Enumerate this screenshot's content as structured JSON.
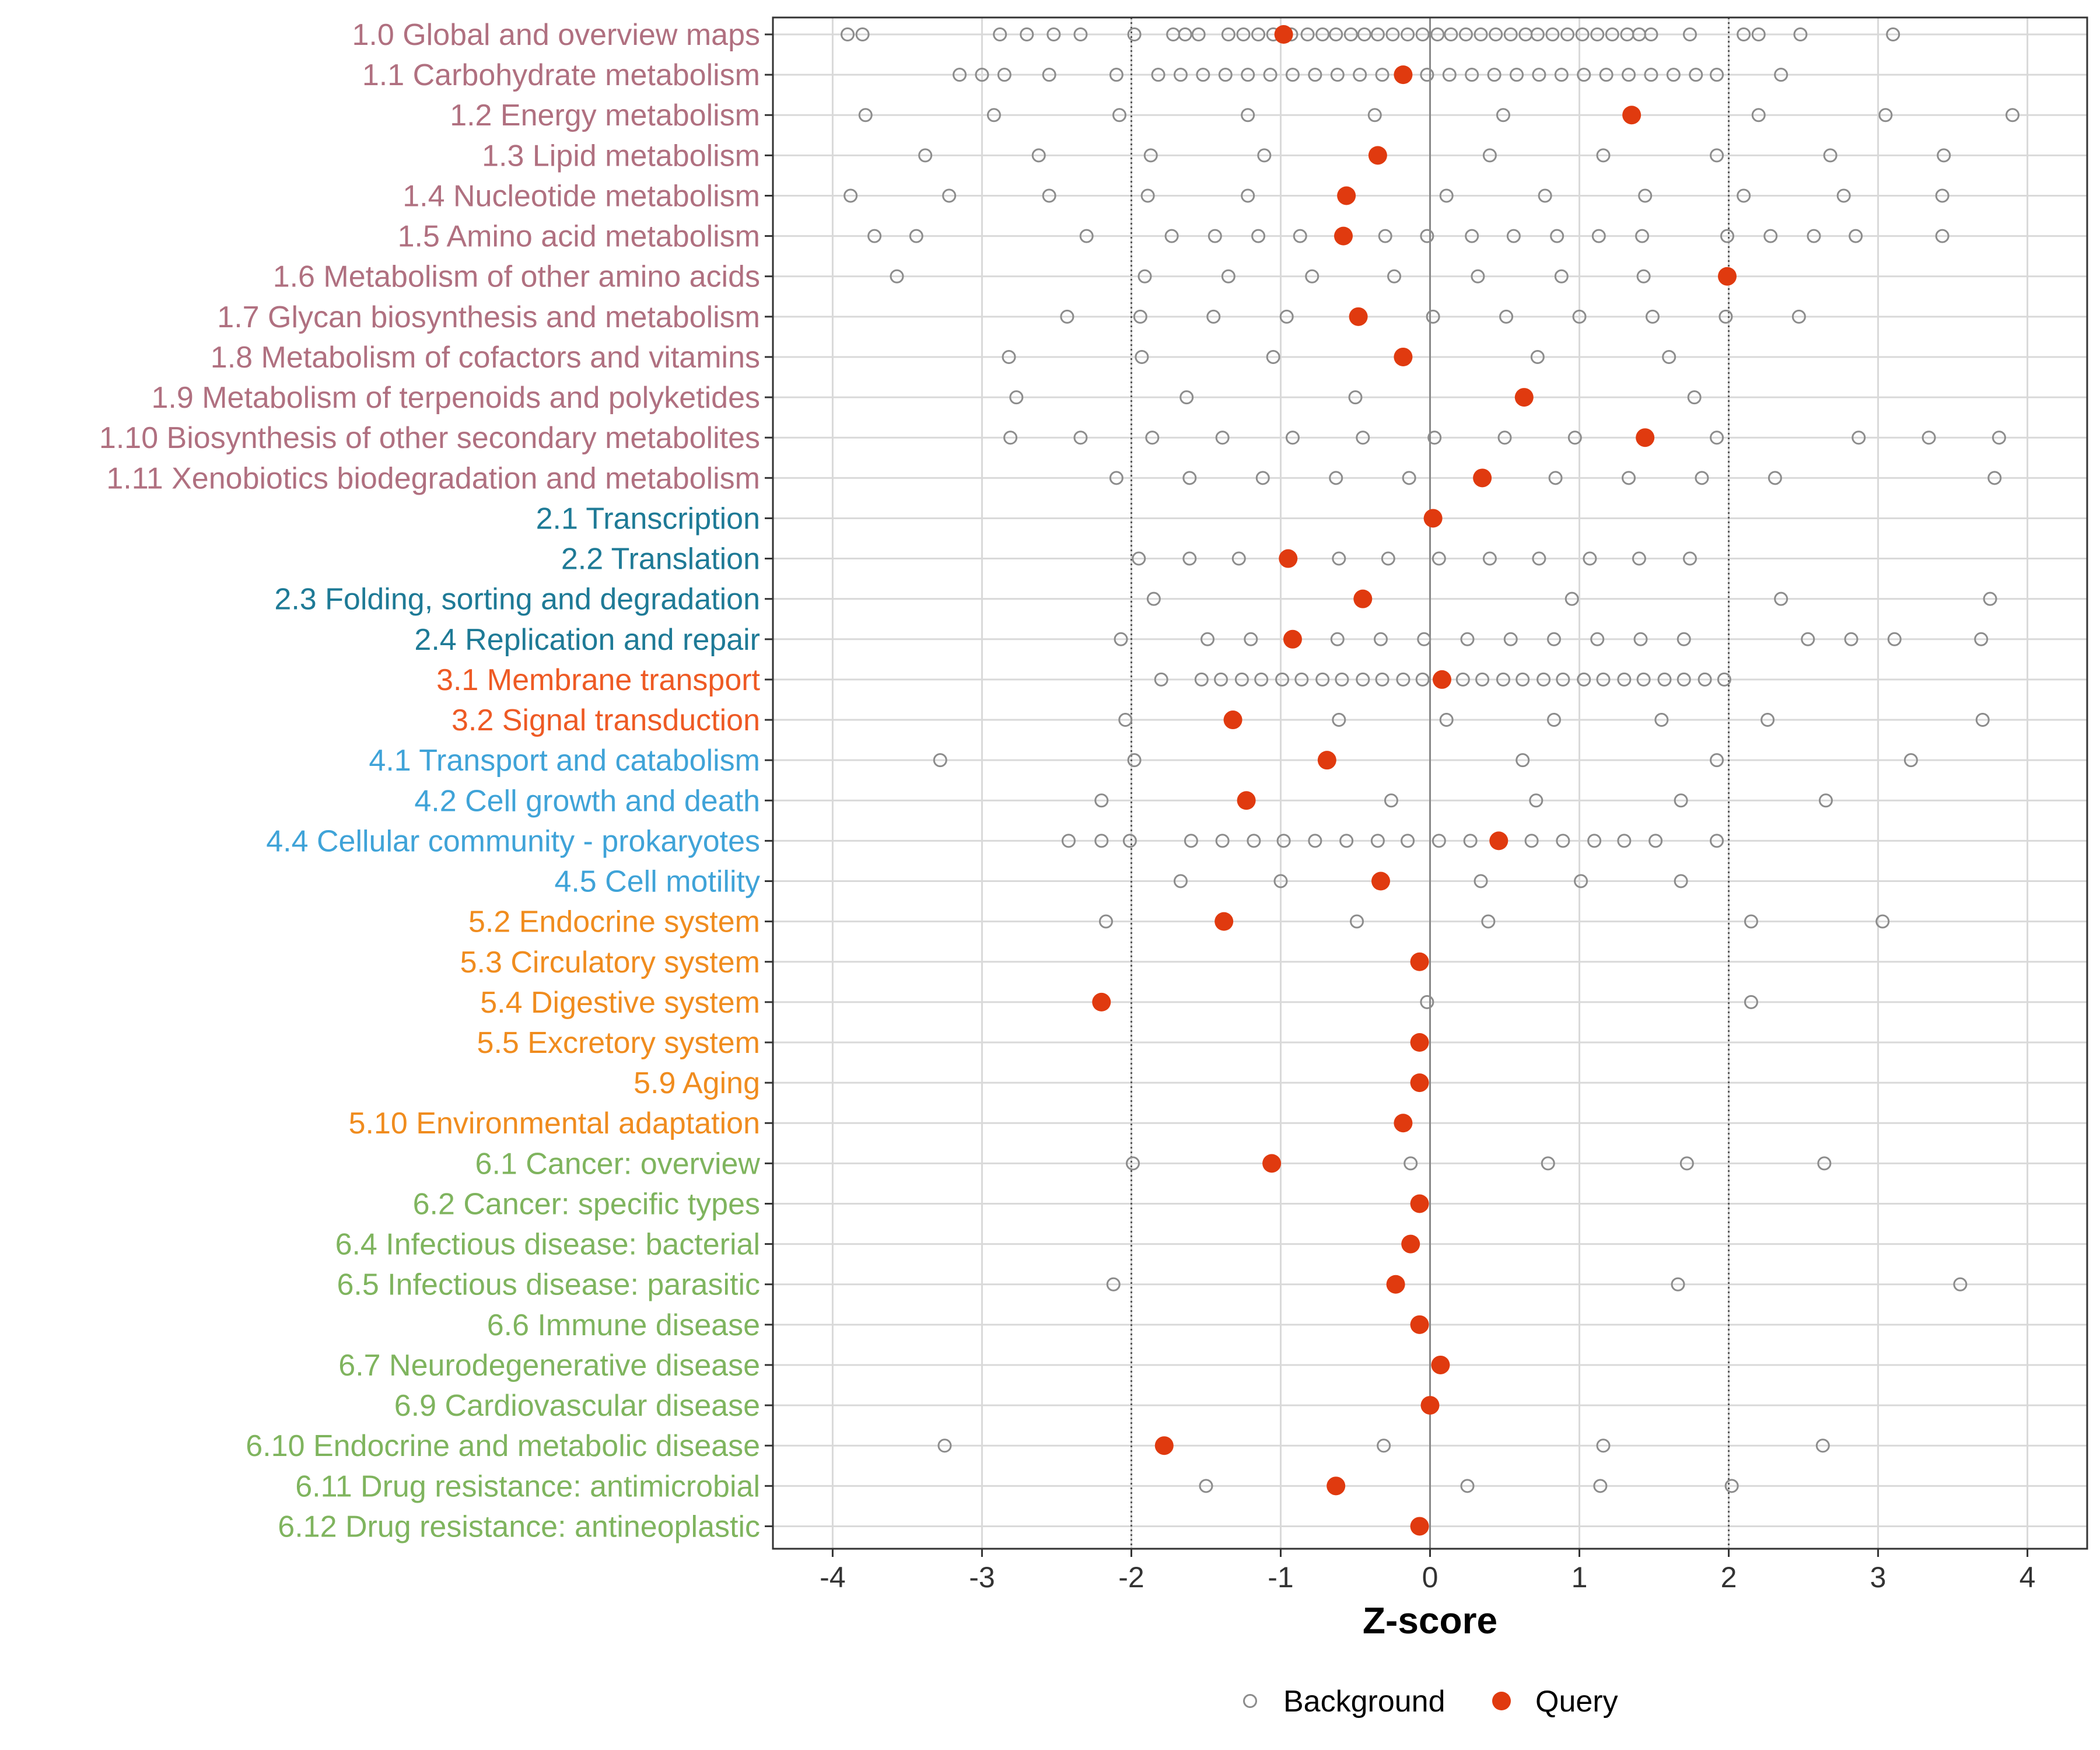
{
  "chart_data": {
    "type": "scatter",
    "xlabel": "Z-score",
    "xlim": [
      -4.4,
      4.4
    ],
    "xticks": [
      -4,
      -3,
      -2,
      -1,
      0,
      1,
      2,
      3,
      4
    ],
    "xtick_labels": [
      "-4",
      "-3",
      "-2",
      "-1",
      "0",
      "1",
      "2",
      "3",
      "4"
    ],
    "threshold_lines": [
      -2,
      2
    ],
    "zero_line": 0,
    "colors": {
      "background_point": "#8c8c8c",
      "query_point": "#e03a0f",
      "grid": "#d9d9d9",
      "threshold": "#555555",
      "zero": "#888888",
      "group_1": "#b07080",
      "group_2": "#1e7a96",
      "group_3": "#ee5a24",
      "group_4": "#3fa3d8",
      "group_5": "#f08c1e",
      "group_6": "#7fb45e"
    },
    "legend": {
      "position": "bottom",
      "entries": [
        {
          "label": "Background",
          "style": "open-circle"
        },
        {
          "label": "Query",
          "style": "filled-circle"
        }
      ]
    },
    "categories": [
      {
        "label": "1.0 Global and overview maps",
        "group": 1,
        "query": -0.98,
        "background": [
          -3.9,
          -3.8,
          -2.88,
          -2.7,
          -2.52,
          -2.34,
          -1.98,
          -1.72,
          -1.64,
          -1.55,
          -1.35,
          -1.25,
          -1.15,
          -1.05,
          -0.93,
          -0.82,
          -0.72,
          -0.63,
          -0.53,
          -0.44,
          -0.35,
          -0.25,
          -0.15,
          -0.05,
          0.05,
          0.14,
          0.24,
          0.34,
          0.44,
          0.54,
          0.64,
          0.72,
          0.82,
          0.92,
          1.02,
          1.12,
          1.22,
          1.32,
          1.4,
          1.48,
          1.74,
          2.1,
          2.2,
          2.48,
          3.1
        ]
      },
      {
        "label": "1.1 Carbohydrate metabolism",
        "group": 1,
        "query": -0.18,
        "background": [
          -3.15,
          -3.0,
          -2.85,
          -2.55,
          -2.1,
          -1.82,
          -1.67,
          -1.52,
          -1.37,
          -1.22,
          -1.07,
          -0.92,
          -0.77,
          -0.62,
          -0.47,
          -0.32,
          -0.02,
          0.13,
          0.28,
          0.43,
          0.58,
          0.73,
          0.88,
          1.03,
          1.18,
          1.33,
          1.48,
          1.63,
          1.78,
          1.92,
          2.35
        ]
      },
      {
        "label": "1.2 Energy metabolism",
        "group": 1,
        "query": 1.35,
        "background": [
          -3.78,
          -2.92,
          -2.08,
          -1.22,
          -0.37,
          0.49,
          2.2,
          3.05,
          3.9
        ]
      },
      {
        "label": "1.3 Lipid metabolism",
        "group": 1,
        "query": -0.35,
        "background": [
          -3.38,
          -2.62,
          -1.87,
          -1.11,
          0.4,
          1.16,
          1.92,
          2.68,
          3.44
        ]
      },
      {
        "label": "1.4 Nucleotide metabolism",
        "group": 1,
        "query": -0.56,
        "background": [
          -3.88,
          -3.22,
          -2.55,
          -1.89,
          -1.22,
          0.11,
          0.77,
          1.44,
          2.1,
          2.77,
          3.43
        ]
      },
      {
        "label": "1.5 Amino acid metabolism",
        "group": 1,
        "query": -0.58,
        "background": [
          -3.72,
          -3.44,
          -2.3,
          -1.73,
          -1.44,
          -1.15,
          -0.87,
          -0.3,
          -0.02,
          0.28,
          0.56,
          0.85,
          1.13,
          1.42,
          1.99,
          2.28,
          2.57,
          2.85,
          3.43
        ]
      },
      {
        "label": "1.6 Metabolism of other amino acids",
        "group": 1,
        "query": 1.99,
        "background": [
          -3.57,
          -1.91,
          -1.35,
          -0.79,
          -0.24,
          0.32,
          0.88,
          1.43
        ]
      },
      {
        "label": "1.7 Glycan biosynthesis and metabolism",
        "group": 1,
        "query": -0.48,
        "background": [
          -2.43,
          -1.94,
          -1.45,
          -0.96,
          0.02,
          0.51,
          1.0,
          1.49,
          1.98,
          2.47
        ]
      },
      {
        "label": "1.8 Metabolism of cofactors and vitamins",
        "group": 1,
        "query": -0.18,
        "background": [
          -2.82,
          -1.93,
          -1.05,
          0.72,
          1.6
        ]
      },
      {
        "label": "1.9 Metabolism of terpenoids and polyketides",
        "group": 1,
        "query": 0.63,
        "background": [
          -2.77,
          -1.63,
          -0.5,
          1.77
        ]
      },
      {
        "label": "1.10 Biosynthesis of other secondary metabolites",
        "group": 1,
        "query": 1.44,
        "background": [
          -2.81,
          -2.34,
          -1.86,
          -1.39,
          -0.92,
          -0.45,
          0.03,
          0.5,
          0.97,
          1.92,
          2.87,
          3.34,
          3.81
        ]
      },
      {
        "label": "1.11 Xenobiotics biodegradation and metabolism",
        "group": 1,
        "query": 0.35,
        "background": [
          -2.1,
          -1.61,
          -1.12,
          -0.63,
          -0.14,
          0.84,
          1.33,
          1.82,
          2.31,
          3.78
        ]
      },
      {
        "label": "2.1 Transcription",
        "group": 2,
        "query": 0.02,
        "background": []
      },
      {
        "label": "2.2 Translation",
        "group": 2,
        "query": -0.95,
        "background": [
          -1.95,
          -1.61,
          -1.28,
          -0.61,
          -0.28,
          0.06,
          0.4,
          0.73,
          1.07,
          1.4,
          1.74
        ]
      },
      {
        "label": "2.3 Folding, sorting and degradation",
        "group": 2,
        "query": -0.45,
        "background": [
          -1.85,
          0.95,
          2.35,
          3.75
        ]
      },
      {
        "label": "2.4 Replication and repair",
        "group": 2,
        "query": -0.92,
        "background": [
          -2.07,
          -1.49,
          -1.2,
          -0.62,
          -0.33,
          -0.04,
          0.25,
          0.54,
          0.83,
          1.12,
          1.41,
          1.7,
          2.53,
          2.82,
          3.11,
          3.69
        ]
      },
      {
        "label": "3.1 Membrane transport",
        "group": 3,
        "query": 0.08,
        "background": [
          -1.8,
          -1.53,
          -1.4,
          -1.26,
          -1.13,
          -0.99,
          -0.86,
          -0.72,
          -0.59,
          -0.45,
          -0.32,
          -0.18,
          -0.05,
          0.22,
          0.35,
          0.49,
          0.62,
          0.76,
          0.89,
          1.03,
          1.16,
          1.3,
          1.43,
          1.57,
          1.7,
          1.84,
          1.97
        ]
      },
      {
        "label": "3.2 Signal transduction",
        "group": 3,
        "query": -1.32,
        "background": [
          -2.04,
          -0.61,
          0.11,
          0.83,
          1.55,
          2.26,
          3.7
        ]
      },
      {
        "label": "4.1 Transport and catabolism",
        "group": 4,
        "query": -0.69,
        "background": [
          -3.28,
          -1.98,
          0.62,
          1.92,
          3.22
        ]
      },
      {
        "label": "4.2 Cell growth and death",
        "group": 4,
        "query": -1.23,
        "background": [
          -2.2,
          -0.26,
          0.71,
          1.68,
          2.65
        ]
      },
      {
        "label": "4.4 Cellular community - prokaryotes",
        "group": 4,
        "query": 0.46,
        "background": [
          -2.42,
          -2.2,
          -2.01,
          -1.6,
          -1.39,
          -1.18,
          -0.98,
          -0.77,
          -0.56,
          -0.35,
          -0.15,
          0.06,
          0.27,
          0.68,
          0.89,
          1.1,
          1.3,
          1.51,
          1.92
        ]
      },
      {
        "label": "4.5 Cell motility",
        "group": 4,
        "query": -0.33,
        "background": [
          -1.67,
          -1.0,
          0.34,
          1.01,
          1.68
        ]
      },
      {
        "label": "5.2 Endocrine system",
        "group": 5,
        "query": -1.38,
        "background": [
          -2.17,
          -0.49,
          0.39,
          2.15,
          3.03
        ]
      },
      {
        "label": "5.3 Circulatory system",
        "group": 5,
        "query": -0.07,
        "background": []
      },
      {
        "label": "5.4 Digestive system",
        "group": 5,
        "query": -2.2,
        "background": [
          -0.02,
          2.15
        ]
      },
      {
        "label": "5.5 Excretory system",
        "group": 5,
        "query": -0.07,
        "background": []
      },
      {
        "label": "5.9 Aging",
        "group": 5,
        "query": -0.07,
        "background": []
      },
      {
        "label": "5.10 Environmental adaptation",
        "group": 5,
        "query": -0.18,
        "background": []
      },
      {
        "label": "6.1 Cancer: overview",
        "group": 6,
        "query": -1.06,
        "background": [
          -1.99,
          -0.13,
          0.79,
          1.72,
          2.64
        ]
      },
      {
        "label": "6.2 Cancer: specific types",
        "group": 6,
        "query": -0.07,
        "background": []
      },
      {
        "label": "6.4 Infectious disease: bacterial",
        "group": 6,
        "query": -0.13,
        "background": []
      },
      {
        "label": "6.5 Infectious disease: parasitic",
        "group": 6,
        "query": -0.23,
        "background": [
          -2.12,
          1.66,
          3.55
        ]
      },
      {
        "label": "6.6 Immune disease",
        "group": 6,
        "query": -0.07,
        "background": []
      },
      {
        "label": "6.7 Neurodegenerative disease",
        "group": 6,
        "query": 0.07,
        "background": []
      },
      {
        "label": "6.9 Cardiovascular disease",
        "group": 6,
        "query": 0.0,
        "background": []
      },
      {
        "label": "6.10 Endocrine and metabolic disease",
        "group": 6,
        "query": -1.78,
        "background": [
          -3.25,
          -0.31,
          1.16,
          2.63
        ]
      },
      {
        "label": "6.11 Drug resistance: antimicrobial",
        "group": 6,
        "query": -0.63,
        "background": [
          -1.5,
          0.25,
          1.14,
          2.02
        ]
      },
      {
        "label": "6.12 Drug resistance: antineoplastic",
        "group": 6,
        "query": -0.07,
        "background": []
      }
    ]
  }
}
